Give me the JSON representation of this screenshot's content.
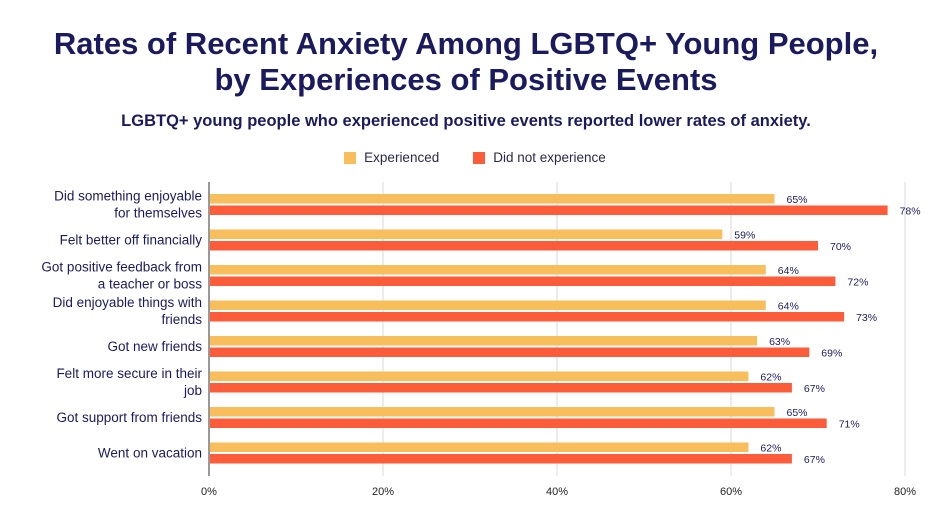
{
  "chart_data": {
    "type": "bar",
    "orientation": "horizontal",
    "title_lines": [
      "Rates of Recent Anxiety Among LGBTQ+ Young People,",
      "by Experiences of Positive Events"
    ],
    "subtitle": "LGBTQ+ young people who experienced positive events reported lower rates of anxiety.",
    "categories": [
      [
        "Did something enjoyable",
        "for themselves"
      ],
      [
        "Felt better off financially"
      ],
      [
        "Got positive feedback from",
        "a teacher or boss"
      ],
      [
        "Did enjoyable things with",
        "friends"
      ],
      [
        "Got new friends"
      ],
      [
        "Felt more secure in their",
        "job"
      ],
      [
        "Got support from friends"
      ],
      [
        "Went on vacation"
      ]
    ],
    "series": [
      {
        "name": "Experienced",
        "color": "#f9be5c",
        "values": [
          65,
          59,
          64,
          64,
          63,
          62,
          65,
          62
        ]
      },
      {
        "name": "Did not experience",
        "color": "#fd5c3b",
        "values": [
          78,
          70,
          72,
          73,
          69,
          67,
          71,
          67
        ]
      }
    ],
    "xlim": [
      0,
      80
    ],
    "x_ticks": [
      "0%",
      "20%",
      "40%",
      "60%",
      "80%"
    ],
    "value_suffix": "%",
    "grid": true,
    "legend_position": "top-center"
  }
}
